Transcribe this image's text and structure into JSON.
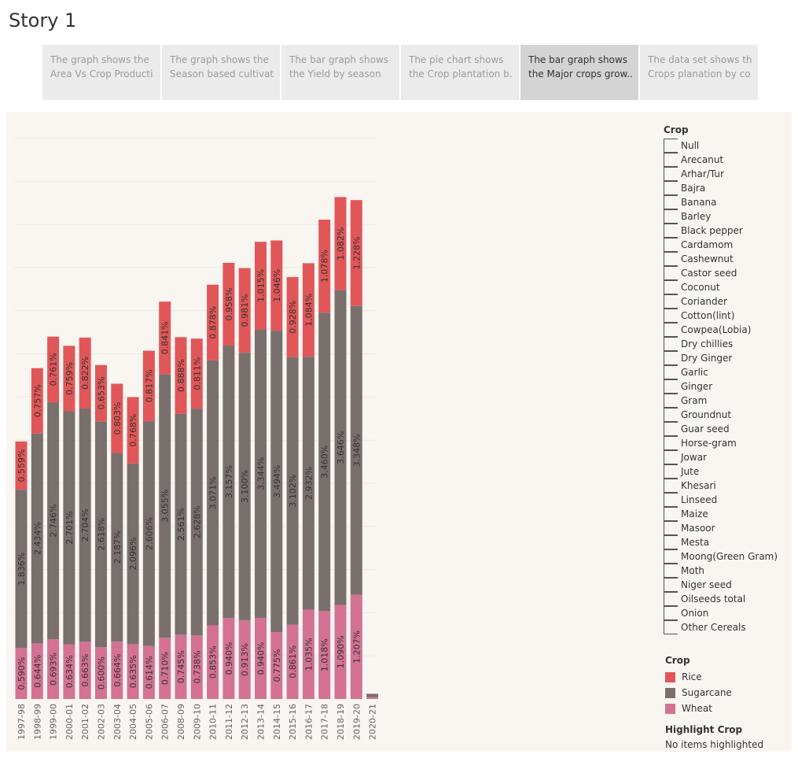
{
  "story": {
    "title": "Story 1"
  },
  "tabs": [
    {
      "line1": "The graph shows the",
      "line2": "Area Vs Crop Producti..",
      "active": false
    },
    {
      "line1": "The graph shows the",
      "line2": "Season based cultivat..",
      "active": false
    },
    {
      "line1": "The bar graph shows",
      "line2": "the Yield by season",
      "active": false
    },
    {
      "line1": "The pie chart shows",
      "line2": "the Crop plantation b..",
      "active": false
    },
    {
      "line1": "The bar graph shows",
      "line2": "the Major crops grow..",
      "active": true
    },
    {
      "line1": "The data set shows the",
      "line2": "Crops planation by co..",
      "active": false
    }
  ],
  "filter": {
    "title": "Crop",
    "items": [
      "Null",
      "Arecanut",
      "Arhar/Tur",
      "Bajra",
      "Banana",
      "Barley",
      "Black pepper",
      "Cardamom",
      "Cashewnut",
      "Castor seed",
      "Coconut",
      "Coriander",
      "Cotton(lint)",
      "Cowpea(Lobia)",
      "Dry chillies",
      "Dry Ginger",
      "Garlic",
      "Ginger",
      "Gram",
      "Groundnut",
      "Guar seed",
      "Horse-gram",
      "Jowar",
      "Jute",
      "Khesari",
      "Linseed",
      "Maize",
      "Masoor",
      "Mesta",
      "Moong(Green Gram)",
      "Moth",
      "Niger seed",
      "Oilseeds total",
      "Onion",
      "Other Cereals"
    ]
  },
  "color_legend": {
    "title": "Crop",
    "items": [
      {
        "label": "Rice",
        "color": "#e15759"
      },
      {
        "label": "Sugarcane",
        "color": "#79706e"
      },
      {
        "label": "Wheat",
        "color": "#d37295"
      }
    ]
  },
  "highlight": {
    "title": "Highlight Crop",
    "text": "No items highlighted"
  },
  "chart_data": {
    "type": "bar",
    "stacked": true,
    "orientation": "vertical",
    "categories": [
      "1997-98",
      "1998-99",
      "1999-00",
      "2000-01",
      "2001-02",
      "2002-03",
      "2003-04",
      "2004-05",
      "2005-06",
      "2006-07",
      "2008-09",
      "2009-10",
      "2010-11",
      "2011-12",
      "2012-13",
      "2013-14",
      "2014-15",
      "2015-16",
      "2016-17",
      "2017-18",
      "2018-19",
      "2019-20",
      "2020-21"
    ],
    "series": [
      {
        "name": "Wheat",
        "color": "#d37295",
        "values": [
          0.59,
          0.644,
          0.693,
          0.634,
          0.663,
          0.6,
          0.664,
          0.635,
          0.614,
          0.71,
          0.745,
          0.738,
          0.853,
          0.94,
          0.913,
          0.94,
          0.775,
          0.861,
          1.035,
          1.018,
          1.09,
          1.207,
          0.02
        ],
        "labels": [
          "0.590%",
          "0.644%",
          "0.693%",
          "0.634%",
          "0.663%",
          "0.600%",
          "0.664%",
          "0.635%",
          "0.614%",
          "0.710%",
          "0.745%",
          "0.738%",
          "0.853%",
          "0.940%",
          "0.913%",
          "0.940%",
          "0.775%",
          "0.861%",
          "1.035%",
          "1.018%",
          "1.090%",
          "1.207%",
          ""
        ]
      },
      {
        "name": "Sugarcane",
        "color": "#79706e",
        "values": [
          1.836,
          2.434,
          2.746,
          2.701,
          2.704,
          2.618,
          2.187,
          2.096,
          2.606,
          3.055,
          2.561,
          2.628,
          3.071,
          3.157,
          3.1,
          3.344,
          3.494,
          3.102,
          2.932,
          3.46,
          3.646,
          3.348,
          0.04
        ],
        "labels": [
          "1.836%",
          "2.434%",
          "2.746%",
          "2.701%",
          "2.704%",
          "2.618%",
          "2.187%",
          "2.096%",
          "2.606%",
          "3.055%",
          "2.561%",
          "2.628%",
          "3.071%",
          "3.157%",
          "3.100%",
          "3.344%",
          "3.494%",
          "3.102%",
          "2.932%",
          "3.460%",
          "3.646%",
          "3.348%",
          ""
        ]
      },
      {
        "name": "Rice",
        "color": "#e15759",
        "values": [
          0.559,
          0.757,
          0.761,
          0.759,
          0.822,
          0.653,
          0.803,
          0.768,
          0.817,
          0.841,
          0.888,
          0.811,
          0.878,
          0.958,
          0.981,
          1.015,
          1.046,
          0.928,
          1.084,
          1.078,
          1.082,
          1.228,
          0
        ],
        "labels": [
          "0.559%",
          "0.757%",
          "0.761%",
          "0.759%",
          "0.822%",
          "0.653%",
          "0.803%",
          "0.768%",
          "0.817%",
          "0.841%",
          "0.888%",
          "0.811%",
          "0.878%",
          "0.958%",
          "0.981%",
          "1.015%",
          "1.046%",
          "0.928%",
          "1.084%",
          "1.078%",
          "1.082%",
          "1.228%",
          ""
        ]
      }
    ],
    "ylim": [
      0,
      6.5
    ],
    "gridlines": [
      0.5,
      1.0,
      1.5,
      2.0,
      2.5,
      3.0,
      3.5,
      4.0,
      4.5,
      5.0,
      5.5,
      6.0,
      6.5
    ],
    "y_axis_shown": false,
    "grid": true,
    "legend": "right"
  }
}
